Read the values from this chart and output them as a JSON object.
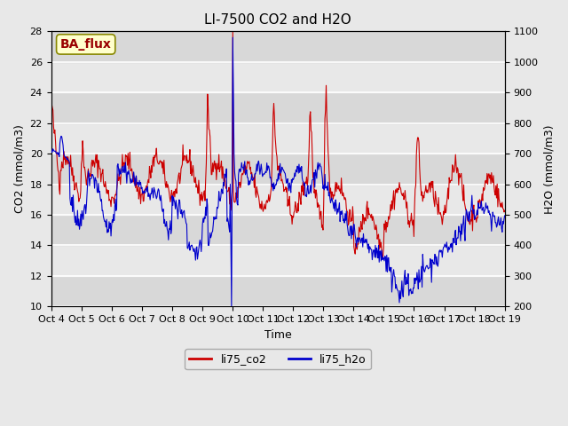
{
  "title": "LI-7500 CO2 and H2O",
  "xlabel": "Time",
  "ylabel_left": "CO2 (mmol/m3)",
  "ylabel_right": "H2O (mmol/m3)",
  "ylim_left": [
    10,
    28
  ],
  "ylim_right": [
    200,
    1100
  ],
  "yticks_left": [
    10,
    12,
    14,
    16,
    18,
    20,
    22,
    24,
    26,
    28
  ],
  "yticks_right": [
    200,
    300,
    400,
    500,
    600,
    700,
    800,
    900,
    1000,
    1100
  ],
  "xtick_labels": [
    "Oct 4",
    "Oct 5",
    "Oct 6",
    "Oct 7",
    "Oct 8",
    "Oct 9",
    "Oct 10",
    "Oct 11",
    "Oct 12",
    "Oct 13",
    "Oct 14",
    "Oct 15",
    "Oct 16",
    "Oct 17",
    "Oct 18",
    "Oct 19"
  ],
  "line_co2_color": "#cc0000",
  "line_h2o_color": "#0000cc",
  "legend_label_co2": "li75_co2",
  "legend_label_h2o": "li75_h2o",
  "annotation_text": "BA_flux",
  "annotation_bg": "#ffffcc",
  "annotation_border": "#888800",
  "annotation_text_color": "#990000",
  "background_color": "#e8e8e8",
  "plot_bg_color": "#f0f0f0",
  "grid_color": "#ffffff",
  "title_fontsize": 11,
  "n_days": 15
}
